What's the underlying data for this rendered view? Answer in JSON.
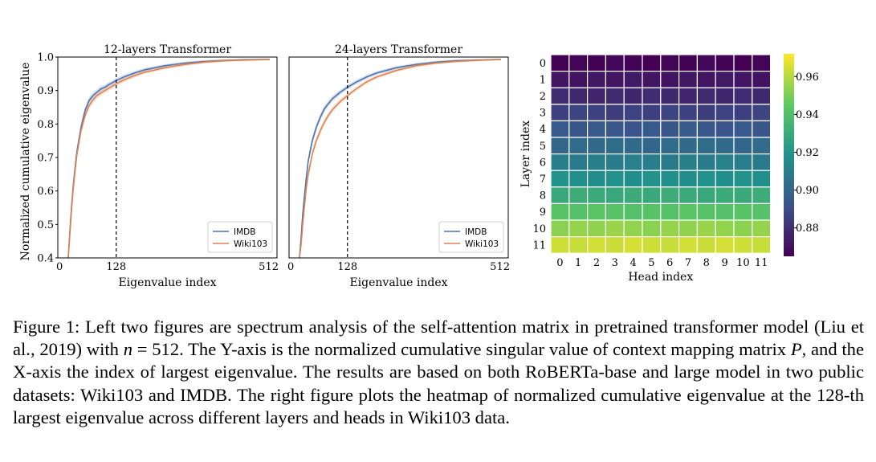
{
  "chart_data": [
    {
      "type": "line",
      "title": "12-layers Transformer",
      "xlabel": "Eigenvalue index",
      "ylabel": "Normalized cumulative eigenvalue",
      "xlim": [
        0,
        512
      ],
      "ylim": [
        0.4,
        1.0
      ],
      "xticks": [
        "0",
        "128",
        "512"
      ],
      "yticks": [
        "0.4",
        "0.5",
        "0.6",
        "0.7",
        "0.8",
        "0.9",
        "1.0"
      ],
      "vline_x": 128,
      "legend_position": "lower-right",
      "x": [
        8,
        12,
        16,
        20,
        25,
        30,
        40,
        50,
        60,
        70,
        80,
        90,
        100,
        110,
        128,
        150,
        175,
        200,
        250,
        300,
        350,
        400,
        450,
        512
      ],
      "series": [
        {
          "name": "IMDB",
          "color": "#4c72b0",
          "values": [
            0.4,
            0.48,
            0.55,
            0.61,
            0.67,
            0.72,
            0.79,
            0.84,
            0.87,
            0.885,
            0.895,
            0.905,
            0.91,
            0.918,
            0.93,
            0.942,
            0.953,
            0.962,
            0.974,
            0.982,
            0.987,
            0.99,
            0.992,
            0.993
          ]
        },
        {
          "name": "Wiki103",
          "color": "#dd8452",
          "values": [
            0.4,
            0.47,
            0.54,
            0.6,
            0.66,
            0.71,
            0.78,
            0.825,
            0.855,
            0.872,
            0.885,
            0.893,
            0.9,
            0.907,
            0.92,
            0.933,
            0.945,
            0.955,
            0.968,
            0.978,
            0.985,
            0.989,
            0.991,
            0.993
          ]
        }
      ]
    },
    {
      "type": "line",
      "title": "24-layers Transformer",
      "xlabel": "Eigenvalue index",
      "ylabel": "",
      "xlim": [
        0,
        512
      ],
      "ylim": [
        0.4,
        1.0
      ],
      "xticks": [
        "0",
        "128",
        "512"
      ],
      "vline_x": 128,
      "legend_position": "lower-right",
      "x": [
        8,
        12,
        16,
        20,
        25,
        30,
        40,
        50,
        60,
        70,
        80,
        90,
        100,
        110,
        128,
        150,
        175,
        200,
        250,
        300,
        350,
        400,
        450,
        512
      ],
      "series": [
        {
          "name": "IMDB",
          "color": "#4c72b0",
          "values": [
            0.4,
            0.46,
            0.53,
            0.58,
            0.64,
            0.69,
            0.75,
            0.79,
            0.82,
            0.845,
            0.86,
            0.875,
            0.885,
            0.895,
            0.91,
            0.925,
            0.94,
            0.952,
            0.968,
            0.978,
            0.985,
            0.989,
            0.991,
            0.993
          ]
        },
        {
          "name": "Wiki103",
          "color": "#dd8452",
          "values": [
            0.4,
            0.44,
            0.5,
            0.55,
            0.61,
            0.65,
            0.71,
            0.75,
            0.78,
            0.805,
            0.825,
            0.842,
            0.855,
            0.867,
            0.885,
            0.905,
            0.925,
            0.94,
            0.96,
            0.974,
            0.982,
            0.987,
            0.99,
            0.993
          ]
        }
      ]
    },
    {
      "type": "heatmap",
      "xlabel": "Head index",
      "ylabel": "Layer index",
      "xticks": [
        "0",
        "1",
        "2",
        "3",
        "4",
        "5",
        "6",
        "7",
        "8",
        "9",
        "10",
        "11"
      ],
      "yticks": [
        "0",
        "1",
        "2",
        "3",
        "4",
        "5",
        "6",
        "7",
        "8",
        "9",
        "10",
        "11"
      ],
      "colorbar_ticks": [
        "0.96",
        "0.94",
        "0.92",
        "0.90",
        "0.88"
      ],
      "colorbar_values": [
        0.96,
        0.94,
        0.92,
        0.9,
        0.88
      ],
      "vmin": 0.865,
      "vmax": 0.972,
      "row_values": [
        0.866,
        0.872,
        0.878,
        0.886,
        0.894,
        0.902,
        0.91,
        0.918,
        0.93,
        0.942,
        0.954,
        0.964
      ]
    }
  ],
  "caption": {
    "part1": "Figure 1: Left two figures are spectrum analysis of the self-attention matrix in pretrained transformer model (Liu et al., 2019) with ",
    "math_n": "n",
    "math_eq": " = 512",
    "part2": ". The Y-axis is the normalized cumulative singular value of context mapping matrix ",
    "math_P": "P",
    "part3": ", and the X-axis the index of largest eigenvalue. The results are based on both RoBERTa-base and large model in two public datasets: Wiki103 and IMDB. The right figure plots the heatmap of normalized cumulative eigenvalue at the 128-th largest eigenvalue across different layers and heads in Wiki103 data."
  }
}
